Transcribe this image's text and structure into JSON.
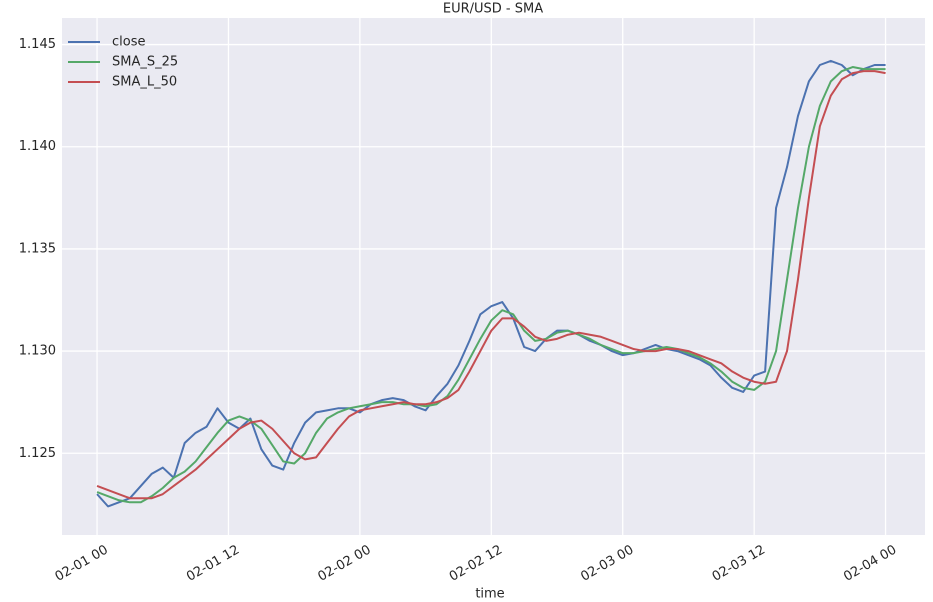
{
  "chart_data": {
    "type": "line",
    "title": "EUR/USD - SMA",
    "x_label": "time",
    "x": [
      0,
      1,
      2,
      3,
      4,
      5,
      6,
      7,
      8,
      9,
      10,
      11,
      12,
      13,
      14,
      15,
      16,
      17,
      18,
      19,
      20,
      21,
      22,
      23,
      24,
      25,
      26,
      27,
      28,
      29,
      30,
      31,
      32,
      33,
      34,
      35,
      36,
      37,
      38,
      39,
      40,
      41,
      42,
      43,
      44,
      45,
      46,
      47,
      48,
      49,
      50,
      51,
      52,
      53,
      54,
      55,
      56,
      57,
      58,
      59,
      60,
      61,
      62,
      63,
      64,
      65,
      66,
      67,
      68,
      69,
      70,
      71,
      72
    ],
    "series": [
      {
        "name": "close",
        "color": "#4c72b0",
        "values": [
          1.123,
          1.1224,
          1.1226,
          1.1228,
          1.1234,
          1.124,
          1.1243,
          1.1238,
          1.1255,
          1.126,
          1.1263,
          1.1272,
          1.1265,
          1.1262,
          1.1267,
          1.1252,
          1.1244,
          1.1242,
          1.1255,
          1.1265,
          1.127,
          1.1271,
          1.1272,
          1.1272,
          1.127,
          1.1274,
          1.1276,
          1.1277,
          1.1276,
          1.1273,
          1.1271,
          1.1278,
          1.1284,
          1.1293,
          1.1305,
          1.1318,
          1.1322,
          1.1324,
          1.1316,
          1.1302,
          1.13,
          1.1306,
          1.131,
          1.131,
          1.1308,
          1.1305,
          1.1303,
          1.13,
          1.1298,
          1.1299,
          1.1301,
          1.1303,
          1.1301,
          1.13,
          1.1298,
          1.1296,
          1.1293,
          1.1287,
          1.1282,
          1.128,
          1.1288,
          1.129,
          1.137,
          1.139,
          1.1415,
          1.1432,
          1.144,
          1.1442,
          1.144,
          1.1435,
          1.1438,
          1.144,
          1.144
        ]
      },
      {
        "name": "SMA_S_25",
        "color": "#55a868",
        "values": [
          1.1231,
          1.1229,
          1.1227,
          1.1226,
          1.1226,
          1.1229,
          1.1233,
          1.1238,
          1.1241,
          1.1246,
          1.1253,
          1.126,
          1.1266,
          1.1268,
          1.1266,
          1.1262,
          1.1254,
          1.1246,
          1.1245,
          1.125,
          1.126,
          1.1267,
          1.127,
          1.1272,
          1.1273,
          1.1274,
          1.1275,
          1.1275,
          1.1274,
          1.1274,
          1.1273,
          1.1274,
          1.1278,
          1.1286,
          1.1296,
          1.1306,
          1.1315,
          1.132,
          1.1318,
          1.131,
          1.1305,
          1.1306,
          1.1309,
          1.131,
          1.1308,
          1.1306,
          1.1303,
          1.1301,
          1.1299,
          1.1299,
          1.13,
          1.1301,
          1.1302,
          1.1301,
          1.1299,
          1.1297,
          1.1294,
          1.129,
          1.1285,
          1.1282,
          1.1281,
          1.1285,
          1.13,
          1.1335,
          1.137,
          1.14,
          1.142,
          1.1432,
          1.1437,
          1.1439,
          1.1438,
          1.1438,
          1.1438
        ]
      },
      {
        "name": "SMA_L_50",
        "color": "#c44e52",
        "values": [
          1.1234,
          1.1232,
          1.123,
          1.1228,
          1.1228,
          1.1228,
          1.123,
          1.1234,
          1.1238,
          1.1242,
          1.1247,
          1.1252,
          1.1257,
          1.1262,
          1.1265,
          1.1266,
          1.1262,
          1.1256,
          1.125,
          1.1247,
          1.1248,
          1.1255,
          1.1262,
          1.1268,
          1.1271,
          1.1272,
          1.1273,
          1.1274,
          1.1275,
          1.1274,
          1.1274,
          1.1275,
          1.1277,
          1.1281,
          1.129,
          1.13,
          1.131,
          1.1316,
          1.1316,
          1.1312,
          1.1307,
          1.1305,
          1.1306,
          1.1308,
          1.1309,
          1.1308,
          1.1307,
          1.1305,
          1.1303,
          1.1301,
          1.13,
          1.13,
          1.1301,
          1.1301,
          1.13,
          1.1298,
          1.1296,
          1.1294,
          1.129,
          1.1287,
          1.1285,
          1.1284,
          1.1285,
          1.13,
          1.1335,
          1.1375,
          1.141,
          1.1425,
          1.1433,
          1.1436,
          1.1437,
          1.1437,
          1.1436
        ]
      }
    ],
    "xlim": [
      -3.2,
      75.6
    ],
    "xticks": [
      {
        "value": 0,
        "label": "02-01 00"
      },
      {
        "value": 12,
        "label": "02-01 12"
      },
      {
        "value": 24,
        "label": "02-02 00"
      },
      {
        "value": 36,
        "label": "02-02 12"
      },
      {
        "value": 48,
        "label": "02-03 00"
      },
      {
        "value": 60,
        "label": "02-03 12"
      },
      {
        "value": 72,
        "label": "02-04 00"
      }
    ],
    "ylim": [
      1.121,
      1.1463
    ],
    "yticks": [
      1.125,
      {
        "value": 1.13,
        "label": "1.130"
      },
      1.135,
      {
        "value": 1.14,
        "label": "1.140"
      },
      1.145
    ],
    "grid": true,
    "legend": "upper left"
  }
}
